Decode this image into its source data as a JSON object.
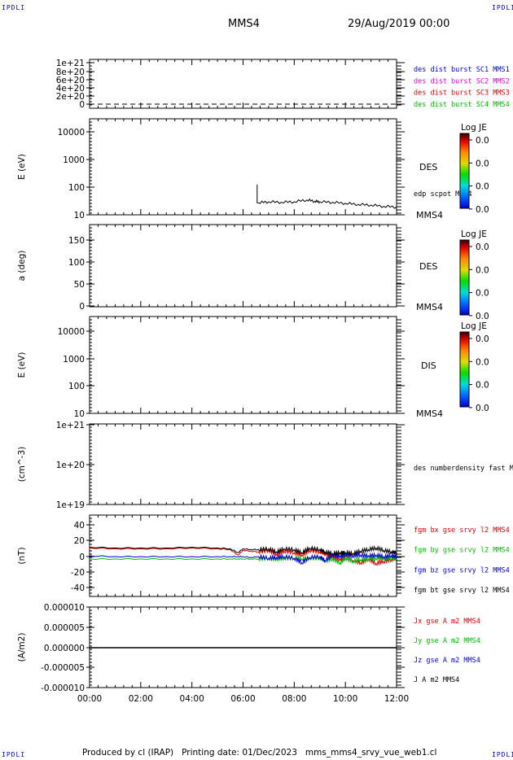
{
  "header": {
    "corner_tl": "IPDLI",
    "corner_tr": "IPDLI",
    "corner_bl": "IPDLI",
    "corner_br": "IPDLI",
    "spacecraft": "MMS4",
    "date": "29/Aug/2019 00:00"
  },
  "footer": {
    "text": "Produced by cl (IRAP)   Printing date: 01/Dec/2023   mms_mms4_srvy_vue_web1.cl"
  },
  "colorbar": {
    "title": "Log JE",
    "ticks": [
      "0.0",
      "0.0",
      "0.0",
      "0.0"
    ]
  },
  "colors": {
    "blue": "#0000dd",
    "magenta": "#dd00dd",
    "red": "#dd0000",
    "green": "#00bb00",
    "black": "#000000"
  },
  "chart_data": [
    {
      "type": "line",
      "panel": "dist-burst",
      "ylabel": "",
      "yticks": [
        "1e+21",
        "8e+20",
        "6e+20",
        "4e+20",
        "2e+20",
        "0"
      ],
      "ylim": [
        0,
        1.1e+21
      ],
      "series": [
        {
          "name": "des dist burst SC1 MMS1",
          "color": "#0000dd"
        },
        {
          "name": "des dist burst SC2 MMS2",
          "color": "#dd00dd"
        },
        {
          "name": "des dist burst SC3 MMS3",
          "color": "#dd0000"
        },
        {
          "name": "des dist burst SC4 MMS4",
          "color": "#00bb00"
        }
      ],
      "reference_line": {
        "y": 0,
        "style": "dashed"
      }
    },
    {
      "type": "heatmap",
      "panel": "des-energy",
      "ylabel": "E (eV)",
      "yscale": "log",
      "yticks": [
        "10000",
        "1000",
        "100",
        "10"
      ],
      "ylim": [
        10,
        15000
      ],
      "side_label": "DES",
      "sc_label": "MMS4",
      "overlay": {
        "name": "edp scpot MMS4",
        "x_hours": [
          6.55,
          6.55,
          6.6,
          7.0,
          7.5,
          8.0,
          8.5,
          8.8,
          9.0,
          9.5,
          10.0,
          10.5,
          11.0,
          11.5,
          12.0
        ],
        "values": [
          100,
          25,
          25,
          27,
          26,
          27,
          31,
          28,
          27,
          26,
          24,
          22,
          21,
          19,
          18
        ]
      }
    },
    {
      "type": "heatmap",
      "panel": "des-pitch",
      "ylabel": "a (deg)",
      "yticks": [
        "150",
        "100",
        "50",
        "0"
      ],
      "ylim": [
        0,
        180
      ],
      "side_label": "DES",
      "sc_label": "MMS4"
    },
    {
      "type": "heatmap",
      "panel": "dis-energy",
      "ylabel": "E (eV)",
      "yscale": "log",
      "yticks": [
        "10000",
        "1000",
        "100",
        "10"
      ],
      "ylim": [
        10,
        15000
      ],
      "side_label": "DIS",
      "sc_label": "MMS4"
    },
    {
      "type": "line",
      "panel": "density",
      "ylabel": "(cm^-3)",
      "yscale": "log",
      "yticks": [
        "1e+21",
        "1e+20",
        "1e+19"
      ],
      "ylim": [
        1e+19,
        1e+21
      ],
      "series": [
        {
          "name": "des numberdensity fast M",
          "color": "#000000",
          "values": []
        }
      ]
    },
    {
      "type": "line",
      "panel": "fgm",
      "ylabel": "(nT)",
      "yticks": [
        "40",
        "20",
        "0",
        "-20",
        "-40"
      ],
      "ylim": [
        -50,
        50
      ],
      "x_hours": [
        0,
        1,
        2,
        3,
        4,
        5,
        5.5,
        5.8,
        6.0,
        6.3,
        6.6,
        7.0,
        7.3,
        7.6,
        8.0,
        8.3,
        8.6,
        9.0,
        9.2,
        9.5,
        9.8,
        10.0,
        10.3,
        10.6,
        10.9,
        11.2,
        11.5,
        11.8,
        12.0
      ],
      "series": [
        {
          "name": "fgm bx gse srvy l2 MMS4",
          "color": "#dd0000",
          "values": [
            11,
            10,
            10,
            10,
            11,
            10,
            9,
            2,
            8,
            7,
            6,
            8,
            3,
            7,
            5,
            2,
            8,
            6,
            4,
            0,
            -3,
            -2,
            -5,
            -8,
            -3,
            -9,
            -6,
            -4,
            -2
          ]
        },
        {
          "name": "fgm by gse srvy l2 MMS4",
          "color": "#00bb00",
          "values": [
            -3,
            -3,
            -3,
            -3,
            -3,
            -3,
            -3,
            -3,
            -3,
            -3,
            -3,
            -2,
            -3,
            -2,
            -2,
            -3,
            -2,
            -2,
            -5,
            -3,
            -8,
            -2,
            -6,
            -4,
            -3,
            -2,
            -2,
            -3,
            -2
          ]
        },
        {
          "name": "fgm bz gse srvy l2 MMS4",
          "color": "#0000dd",
          "values": [
            1,
            0,
            0,
            0,
            0,
            0,
            0,
            0,
            0,
            -1,
            0,
            -2,
            -1,
            0,
            -2,
            -8,
            -1,
            0,
            -5,
            2,
            1,
            2,
            1,
            2,
            1,
            2,
            0,
            1,
            0
          ]
        },
        {
          "name": "fgm bt gse srvy l2 MMS4",
          "color": "#000000",
          "values": [
            12,
            11,
            11,
            11,
            12,
            11,
            10,
            5,
            10,
            9,
            9,
            10,
            6,
            10,
            9,
            5,
            11,
            9,
            6,
            4,
            5,
            5,
            4,
            7,
            9,
            11,
            8,
            6,
            5
          ]
        }
      ]
    },
    {
      "type": "line",
      "panel": "current",
      "ylabel": "(A/m2)",
      "yticks": [
        "0.000010",
        "0.000005",
        "0.000000",
        "-0.000005",
        "-0.000010"
      ],
      "ylim": [
        -1e-05,
        1e-05
      ],
      "x_hours": [
        0,
        12
      ],
      "series": [
        {
          "name": "Jx gse A m2 MMS4",
          "color": "#dd0000",
          "values": [
            0,
            0
          ]
        },
        {
          "name": "Jy gse A m2 MMS4",
          "color": "#00bb00",
          "values": [
            0,
            0
          ]
        },
        {
          "name": "Jz gse A m2 MMS4",
          "color": "#0000dd",
          "values": [
            0,
            0
          ]
        },
        {
          "name": "J A m2 MMS4",
          "color": "#000000",
          "values": [
            0,
            0
          ]
        }
      ]
    }
  ],
  "xaxis": {
    "ticks": [
      "00:00",
      "02:00",
      "04:00",
      "06:00",
      "08:00",
      "10:00",
      "12:00"
    ],
    "xlim_hours": [
      0,
      12
    ]
  }
}
